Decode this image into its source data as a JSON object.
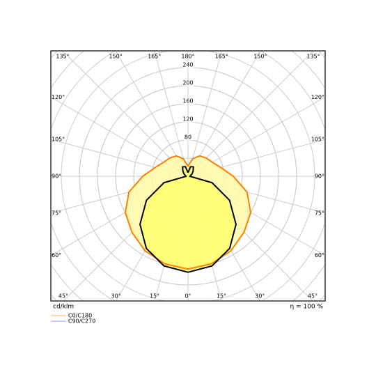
{
  "chart_data": {
    "type": "polar",
    "unit_label": "cd/klm",
    "efficiency_label": "η = 100 %",
    "angles": [
      0,
      15,
      30,
      45,
      60,
      75,
      90,
      105,
      120,
      135,
      150,
      165,
      180
    ],
    "angle_ticks": [
      {
        "value": 0,
        "label": "0°"
      },
      {
        "value": 15,
        "label": "15°"
      },
      {
        "value": 30,
        "label": "30°"
      },
      {
        "value": 45,
        "label": "45°"
      },
      {
        "value": 60,
        "label": "60°"
      },
      {
        "value": 75,
        "label": "75°"
      },
      {
        "value": 90,
        "label": "90°"
      },
      {
        "value": 105,
        "label": "105°"
      },
      {
        "value": 120,
        "label": "120°"
      },
      {
        "value": 135,
        "label": "135°"
      },
      {
        "value": 150,
        "label": "150°"
      },
      {
        "value": 165,
        "label": "165°"
      },
      {
        "value": 180,
        "label": "180°"
      }
    ],
    "rlim": [
      0,
      400
    ],
    "rticks": [
      80,
      120,
      160,
      200,
      240
    ],
    "grid": true,
    "series": [
      {
        "name": "C0/C180",
        "color": "#ff8000",
        "fill": "#fffaa8",
        "legend_color": "#f5b060",
        "values": [
          205,
          200,
          190,
          175,
          160,
          135,
          100,
          75,
          62,
          57,
          52,
          40,
          22
        ]
      },
      {
        "name": "C90/C270",
        "color": "#000000",
        "fill": "#ffff70",
        "legend_color": "#8fa4d4",
        "values": [
          212,
          205,
          184,
          150,
          106,
          55,
          4,
          6,
          10,
          16,
          24,
          22,
          8
        ]
      }
    ]
  }
}
